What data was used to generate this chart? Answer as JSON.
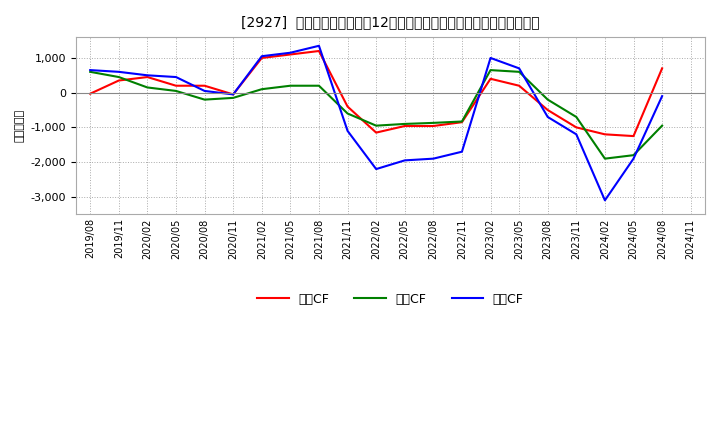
{
  "title": "[2927]  キャッシュフローの12か月移動合計の対前年同期増減額の推移",
  "ylabel": "（百万円）",
  "xlabels": [
    "2019/08",
    "2019/11",
    "2020/02",
    "2020/05",
    "2020/08",
    "2020/11",
    "2021/02",
    "2021/05",
    "2021/08",
    "2021/11",
    "2022/02",
    "2022/05",
    "2022/08",
    "2022/11",
    "2023/02",
    "2023/05",
    "2023/08",
    "2023/11",
    "2024/02",
    "2024/05",
    "2024/08",
    "2024/11"
  ],
  "eigyo_cf": [
    -30,
    350,
    450,
    200,
    200,
    -50,
    1000,
    1100,
    1200,
    -400,
    -1150,
    -960,
    -960,
    -850,
    400,
    200,
    -500,
    -1000,
    -1200,
    -1250,
    700,
    null
  ],
  "toshi_cf": [
    600,
    450,
    150,
    50,
    -200,
    -150,
    100,
    200,
    200,
    -600,
    -950,
    -900,
    -870,
    -830,
    650,
    600,
    -200,
    -700,
    -1900,
    -1800,
    -950,
    null
  ],
  "free_cf": [
    650,
    600,
    500,
    450,
    50,
    -50,
    1050,
    1150,
    1350,
    -1100,
    -2200,
    -1950,
    -1900,
    -1700,
    1000,
    700,
    -700,
    -1200,
    -3100,
    -1900,
    -100,
    null
  ],
  "eigyo_color": "#ff0000",
  "toshi_color": "#008000",
  "free_color": "#0000ff",
  "eigyo_label": "営業CF",
  "toshi_label": "投資CF",
  "free_label": "フリCF",
  "ylim": [
    -3500,
    1600
  ],
  "yticks": [
    -3000,
    -2000,
    -1000,
    0,
    1000
  ],
  "bg_color": "#ffffff",
  "grid_color": "#aaaaaa"
}
